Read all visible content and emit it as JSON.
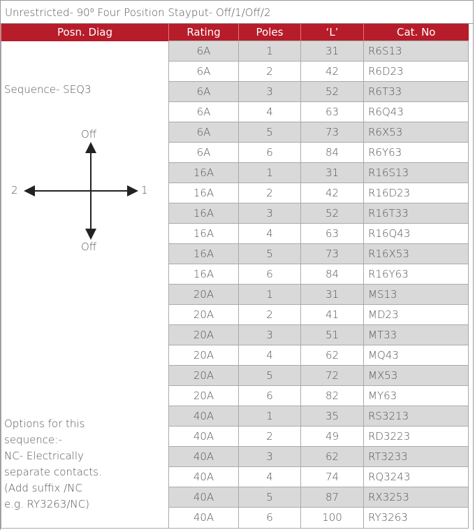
{
  "title": "Unrestricted- 90⁰ Four Position Stayput- Off/1/Off/2",
  "table": {
    "header": [
      "Posn. Diag",
      "Rating",
      "Poles",
      "‘L’",
      "Cat. No"
    ],
    "rows": [
      [
        "6A",
        1,
        31,
        "R6S13"
      ],
      [
        "6A",
        2,
        42,
        "R6D23"
      ],
      [
        "6A",
        3,
        52,
        "R6T33"
      ],
      [
        "6A",
        4,
        63,
        "R6Q43"
      ],
      [
        "6A",
        5,
        73,
        "R6X53"
      ],
      [
        "6A",
        6,
        84,
        "R6Y63"
      ],
      [
        "16A",
        1,
        31,
        "R16S13"
      ],
      [
        "16A",
        2,
        42,
        "R16D23"
      ],
      [
        "16A",
        3,
        52,
        "R16T33"
      ],
      [
        "16A",
        4,
        63,
        "R16Q43"
      ],
      [
        "16A",
        5,
        73,
        "R16X53"
      ],
      [
        "16A",
        6,
        84,
        "R16Y63"
      ],
      [
        "20A",
        1,
        31,
        "MS13"
      ],
      [
        "20A",
        2,
        41,
        "MD23"
      ],
      [
        "20A",
        3,
        51,
        "MT33"
      ],
      [
        "20A",
        4,
        62,
        "MQ43"
      ],
      [
        "20A",
        5,
        72,
        "MX53"
      ],
      [
        "20A",
        6,
        82,
        "MY63"
      ],
      [
        "40A",
        1,
        35,
        "RS3213"
      ],
      [
        "40A",
        2,
        49,
        "RD3223"
      ],
      [
        "40A",
        3,
        62,
        "RT3233"
      ],
      [
        "40A",
        4,
        74,
        "RQ3243"
      ],
      [
        "40A",
        5,
        87,
        "RX3253"
      ],
      [
        "40A",
        6,
        100,
        "RY3263"
      ]
    ]
  },
  "diagram": {
    "sequence": "Sequence- SEQ3",
    "top": "Off",
    "left": "2",
    "right": "1",
    "bottom": "Off"
  },
  "options": [
    "Options for this",
    "sequence:-",
    "NC- Electrically",
    "separate contacts.",
    "(Add suffix /NC",
    "e.g. RY3263/NC)"
  ]
}
